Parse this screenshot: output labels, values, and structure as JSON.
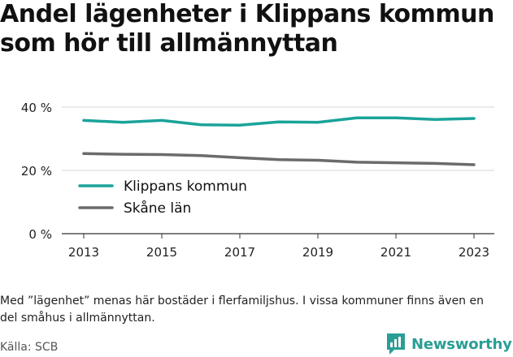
{
  "title": {
    "line1": "Andel lägenheter i Klippans kommun",
    "line2": "som hör till allmännyttan"
  },
  "chart_data": {
    "type": "line",
    "x": [
      2013,
      2014,
      2015,
      2016,
      2017,
      2018,
      2019,
      2020,
      2021,
      2022,
      2023
    ],
    "x_ticks": [
      "2013",
      "2015",
      "2017",
      "2019",
      "2021",
      "2023"
    ],
    "y_ticks": [
      "0 %",
      "20 %",
      "40 %"
    ],
    "ylim": [
      0,
      40
    ],
    "grid": true,
    "legend_position": "left",
    "series": [
      {
        "name": "Klippans kommun",
        "color": "#1aa39a",
        "values": [
          35.8,
          35.2,
          35.8,
          34.4,
          34.3,
          35.3,
          35.2,
          36.6,
          36.6,
          36.1,
          36.4
        ]
      },
      {
        "name": "Skåne län",
        "color": "#6b6b6e",
        "values": [
          25.3,
          25.1,
          25.0,
          24.7,
          24.0,
          23.4,
          23.2,
          22.6,
          22.4,
          22.2,
          21.8
        ]
      }
    ]
  },
  "note": "Med ”lägenhet” menas här bostäder i flerfamiljshus. I vissa kommuner finns även en del småhus i allmännyttan.",
  "source": "Källa: SCB",
  "brand": {
    "name": "Newsworthy",
    "icon": "newsworthy-logo-icon",
    "color": "#2a9e95"
  }
}
